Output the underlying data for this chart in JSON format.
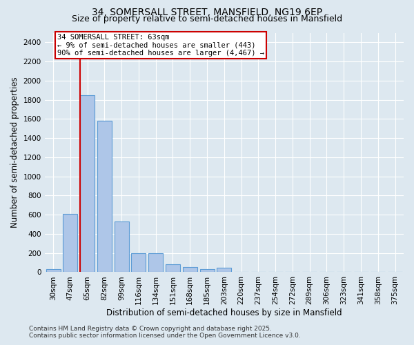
{
  "title_line1": "34, SOMERSALL STREET, MANSFIELD, NG19 6EP",
  "title_line2": "Size of property relative to semi-detached houses in Mansfield",
  "xlabel": "Distribution of semi-detached houses by size in Mansfield",
  "ylabel": "Number of semi-detached properties",
  "categories": [
    "30sqm",
    "47sqm",
    "65sqm",
    "82sqm",
    "99sqm",
    "116sqm",
    "134sqm",
    "151sqm",
    "168sqm",
    "185sqm",
    "203sqm",
    "220sqm",
    "237sqm",
    "254sqm",
    "272sqm",
    "289sqm",
    "306sqm",
    "323sqm",
    "341sqm",
    "358sqm",
    "375sqm"
  ],
  "values": [
    30,
    610,
    1850,
    1580,
    530,
    195,
    195,
    80,
    55,
    35,
    50,
    0,
    0,
    0,
    0,
    0,
    0,
    0,
    0,
    0,
    0
  ],
  "bar_color": "#aec6e8",
  "bar_edge_color": "#5b9bd5",
  "background_color": "#dde8f0",
  "grid_color": "#ffffff",
  "vline_color": "#cc0000",
  "annotation_box_edgecolor": "#cc0000",
  "annotation_text_line1": "34 SOMERSALL STREET: 63sqm",
  "annotation_text_line2": "← 9% of semi-detached houses are smaller (443)",
  "annotation_text_line3": "90% of semi-detached houses are larger (4,467) →",
  "ylim": [
    0,
    2500
  ],
  "yticks": [
    0,
    200,
    400,
    600,
    800,
    1000,
    1200,
    1400,
    1600,
    1800,
    2000,
    2200,
    2400
  ],
  "footer_line1": "Contains HM Land Registry data © Crown copyright and database right 2025.",
  "footer_line2": "Contains public sector information licensed under the Open Government Licence v3.0.",
  "title_fontsize": 10,
  "subtitle_fontsize": 9,
  "axis_label_fontsize": 8.5,
  "tick_fontsize": 7.5,
  "annotation_fontsize": 7.5,
  "footer_fontsize": 6.5
}
